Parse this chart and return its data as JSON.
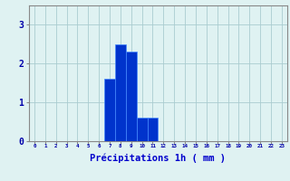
{
  "hours": [
    0,
    1,
    2,
    3,
    4,
    5,
    6,
    7,
    8,
    9,
    10,
    11,
    12,
    13,
    14,
    15,
    16,
    17,
    18,
    19,
    20,
    21,
    22,
    23
  ],
  "values": [
    0,
    0,
    0,
    0,
    0,
    0,
    0,
    1.6,
    2.5,
    2.3,
    0.6,
    0.6,
    0,
    0,
    0,
    0,
    0,
    0,
    0,
    0,
    0,
    0,
    0,
    0
  ],
  "bar_color": "#0033cc",
  "bar_edge_color": "#4488ff",
  "background_color": "#dff2f2",
  "grid_color": "#aaccd0",
  "axis_color": "#888888",
  "tick_color": "#0000aa",
  "xlabel": "Précipitations 1h ( mm )",
  "xlabel_color": "#0000cc",
  "yticks": [
    0,
    1,
    2,
    3
  ],
  "ylim": [
    0,
    3.5
  ],
  "xlim": [
    -0.5,
    23.5
  ],
  "xtick_labels": [
    "0",
    "1",
    "2",
    "3",
    "4",
    "5",
    "6",
    "7",
    "8",
    "9",
    "10",
    "11",
    "12",
    "13",
    "14",
    "15",
    "16",
    "17",
    "18",
    "19",
    "20",
    "21",
    "22",
    "23"
  ]
}
